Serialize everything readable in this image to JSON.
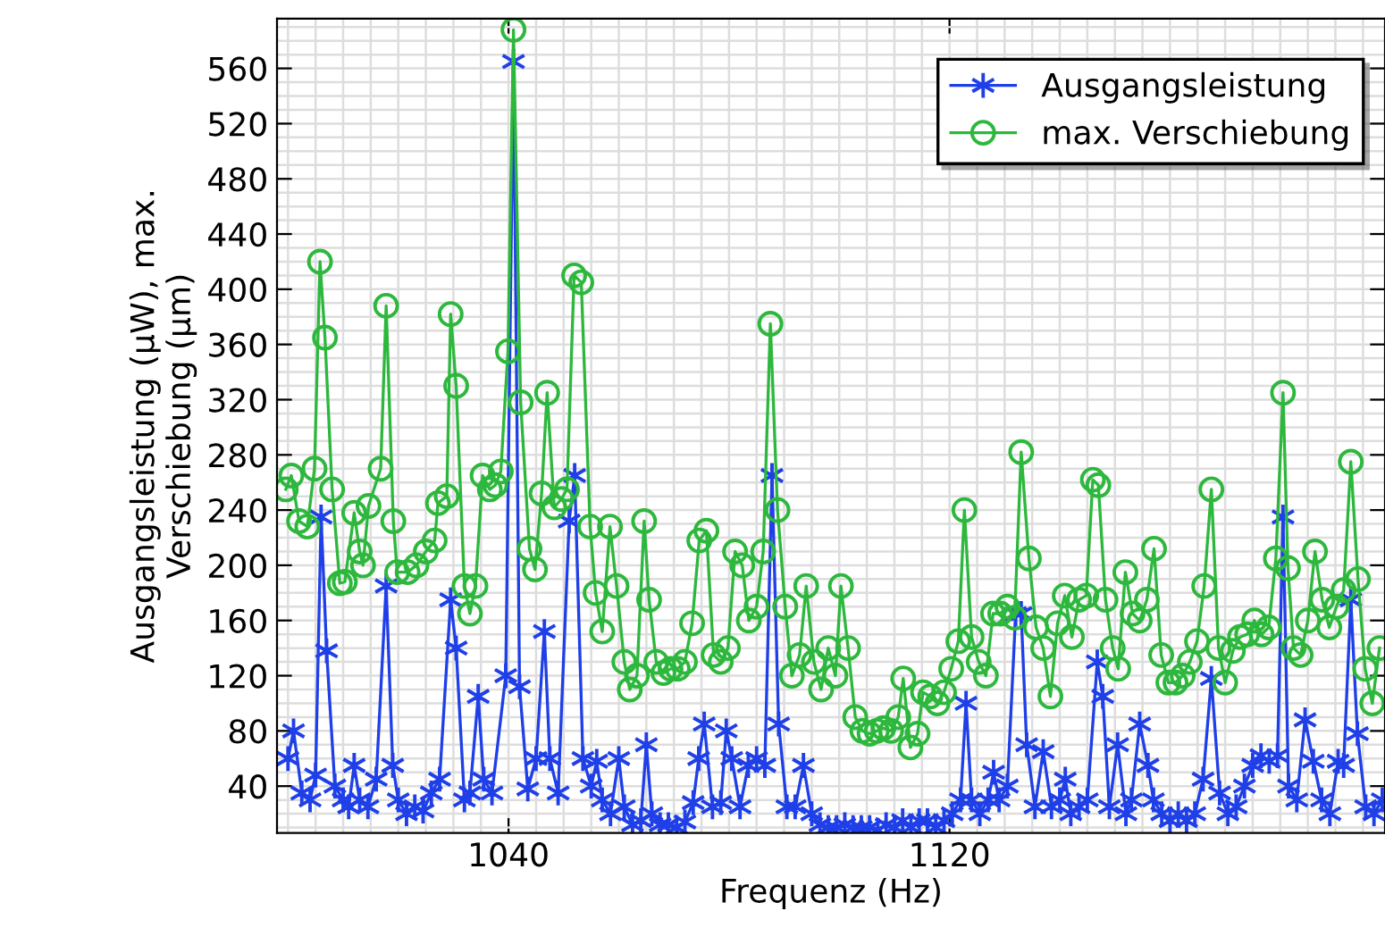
{
  "chart_data": {
    "type": "line",
    "xlabel": "Frequenz (Hz)",
    "ylabel": "Ausgangsleistung (µW), max.\nVerschiebung (µm)",
    "xlim": [
      998,
      1199
    ],
    "xticks": [
      1040,
      1120
    ],
    "ylim": [
      6,
      596
    ],
    "yticks": [
      40,
      80,
      120,
      160,
      200,
      240,
      280,
      320,
      360,
      400,
      440,
      480,
      520,
      560
    ],
    "grid": true,
    "legend": "top right",
    "series": [
      {
        "name": "Ausgangsleistung",
        "color": "#1f3fe8",
        "marker": "cross",
        "x": [
          1000,
          1001,
          1002.5,
          1004,
          1005,
          1006,
          1007,
          1008.5,
          1010,
          1011,
          1012,
          1013,
          1014.5,
          1016,
          1017.8,
          1019,
          1020,
          1021.5,
          1023,
          1024.5,
          1026,
          1027.5,
          1029.5,
          1030.5,
          1032,
          1033,
          1034.5,
          1035.5,
          1037,
          1039.5,
          1040.9,
          1042,
          1043.5,
          1045,
          1046.5,
          1047.5,
          1049,
          1051,
          1052,
          1053.5,
          1055,
          1056,
          1057,
          1058.5,
          1060,
          1061,
          1062.5,
          1064,
          1065,
          1066,
          1067.5,
          1069,
          1070.5,
          1072,
          1073.5,
          1074.5,
          1075.5,
          1077,
          1078.5,
          1079.5,
          1080.5,
          1082,
          1083.5,
          1085,
          1086.5,
          1087.8,
          1089,
          1090.5,
          1092,
          1093.5,
          1095,
          1096.5,
          1098,
          1099.5,
          1101,
          1102.5,
          1104,
          1105.5,
          1107,
          1108.5,
          1110,
          1111.5,
          1113,
          1114.5,
          1116,
          1117.5,
          1119,
          1120.5,
          1122,
          1123,
          1124,
          1125.5,
          1127,
          1128,
          1129,
          1130.5,
          1132,
          1133,
          1134,
          1135.5,
          1137,
          1138.5,
          1140,
          1141,
          1142,
          1143.5,
          1145,
          1146.8,
          1147.8,
          1149,
          1150.5,
          1152,
          1153,
          1154.5,
          1156,
          1157,
          1158.5,
          1160,
          1161.5,
          1163,
          1164.5,
          1166,
          1167.5,
          1169,
          1170.5,
          1172,
          1173.5,
          1175,
          1176.5,
          1178,
          1179.5,
          1180.5,
          1181.5,
          1183,
          1184.5,
          1186,
          1187.5,
          1189,
          1190.5,
          1191.5,
          1192.8,
          1194,
          1195.5,
          1197,
          1198.5
        ],
        "values": [
          60,
          80,
          35,
          30,
          48,
          235,
          138,
          40,
          30,
          25,
          55,
          30,
          25,
          45,
          185,
          55,
          30,
          20,
          25,
          22,
          35,
          45,
          175,
          140,
          30,
          35,
          105,
          45,
          35,
          120,
          565,
          112,
          38,
          60,
          152,
          60,
          35,
          232,
          265,
          60,
          40,
          58,
          30,
          20,
          60,
          25,
          12,
          15,
          70,
          20,
          12,
          12,
          10,
          14,
          28,
          60,
          85,
          25,
          28,
          80,
          60,
          25,
          55,
          60,
          55,
          265,
          85,
          25,
          25,
          55,
          20,
          12,
          10,
          10,
          12,
          10,
          10,
          10,
          8,
          12,
          10,
          15,
          10,
          15,
          15,
          10,
          15,
          20,
          30,
          100,
          30,
          20,
          30,
          50,
          30,
          40,
          165,
          165,
          70,
          25,
          65,
          25,
          30,
          45,
          20,
          25,
          30,
          130,
          105,
          25,
          70,
          20,
          30,
          85,
          55,
          30,
          20,
          15,
          20,
          15,
          20,
          45,
          118,
          35,
          20,
          25,
          40,
          55,
          62,
          58,
          62,
          235,
          40,
          30,
          88,
          58,
          30,
          20,
          58,
          55,
          175,
          78,
          25,
          20,
          30
        ]
      },
      {
        "name": "max. Verschiebung",
        "color": "#2db83d",
        "marker": "circle",
        "x": [
          999.6,
          1000.6,
          1002,
          1003.5,
          1004.8,
          1005.8,
          1006.7,
          1008,
          1009.4,
          1010.3,
          1012,
          1013,
          1013.6,
          1014.6,
          1016.8,
          1017.8,
          1019.1,
          1019.8,
          1021.7,
          1023.3,
          1025,
          1026.6,
          1027.2,
          1028.8,
          1029.5,
          1030.5,
          1032,
          1033,
          1034,
          1035.3,
          1036.6,
          1037.6,
          1038.6,
          1039.9,
          1040.9,
          1042.2,
          1043.8,
          1044.8,
          1046,
          1047,
          1048.3,
          1049.6,
          1050.6,
          1051.9,
          1053.2,
          1054.8,
          1055.8,
          1057,
          1058.4,
          1059.6,
          1061,
          1062,
          1063.3,
          1064.6,
          1065.5,
          1066.8,
          1068.1,
          1069.4,
          1070.7,
          1072,
          1073.3,
          1074.6,
          1075.9,
          1077.2,
          1078.5,
          1079.8,
          1081.1,
          1082.4,
          1083.6,
          1085,
          1086.2,
          1087.5,
          1088.8,
          1090.2,
          1091.4,
          1092.8,
          1094,
          1095.4,
          1096.7,
          1098,
          1099.3,
          1100.3,
          1101.6,
          1102.9,
          1104.2,
          1105.5,
          1106.8,
          1108,
          1109.4,
          1110.7,
          1111.6,
          1112.9,
          1114.2,
          1115.2,
          1116.5,
          1117.8,
          1119,
          1120.3,
          1121.6,
          1122.7,
          1124,
          1125.3,
          1126.6,
          1127.9,
          1129.2,
          1130.5,
          1131.8,
          1133,
          1134.4,
          1135.7,
          1137,
          1138.3,
          1139.6,
          1140.9,
          1142.2,
          1143.5,
          1144.8,
          1146,
          1147,
          1148.3,
          1149.6,
          1150.6,
          1151.9,
          1153.2,
          1154.5,
          1155.8,
          1157.1,
          1158.4,
          1159.7,
          1161,
          1162.3,
          1163.6,
          1164.9,
          1166.2,
          1167.5,
          1168.8,
          1170,
          1171.4,
          1172.7,
          1174,
          1175.3,
          1176.6,
          1177.9,
          1179.2,
          1180.5,
          1181.4,
          1182.4,
          1183.7,
          1185,
          1186.3,
          1187.6,
          1188.9,
          1190.2,
          1191.5,
          1192.8,
          1194.1,
          1195.4,
          1196.7,
          1198
        ],
        "values": [
          255,
          265,
          232,
          228,
          270,
          420,
          365,
          255,
          187,
          188,
          238,
          210,
          200,
          243,
          270,
          388,
          232,
          195,
          195,
          200,
          210,
          218,
          245,
          250,
          382,
          330,
          185,
          165,
          185,
          265,
          255,
          258,
          268,
          355,
          588,
          318,
          212,
          197,
          252,
          325,
          242,
          248,
          255,
          410,
          405,
          228,
          180,
          152,
          228,
          185,
          130,
          110,
          120,
          232,
          175,
          130,
          122,
          125,
          125,
          130,
          158,
          218,
          225,
          135,
          130,
          140,
          210,
          200,
          160,
          170,
          210,
          375,
          240,
          170,
          120,
          135,
          185,
          130,
          110,
          140,
          120,
          185,
          140,
          90,
          80,
          78,
          80,
          82,
          80,
          90,
          118,
          68,
          78,
          108,
          105,
          100,
          108,
          125,
          145,
          240,
          148,
          130,
          120,
          165,
          165,
          170,
          162,
          282,
          205,
          155,
          140,
          105,
          158,
          178,
          148,
          175,
          178,
          262,
          258,
          175,
          140,
          125,
          195,
          165,
          160,
          175,
          212,
          135,
          115,
          115,
          120,
          130,
          145,
          185,
          255,
          140,
          115,
          138,
          148,
          150,
          160,
          150,
          155,
          205,
          325,
          198,
          140,
          135,
          160,
          210,
          175,
          155,
          170,
          182,
          275,
          190,
          125,
          100,
          140
        ]
      }
    ]
  }
}
